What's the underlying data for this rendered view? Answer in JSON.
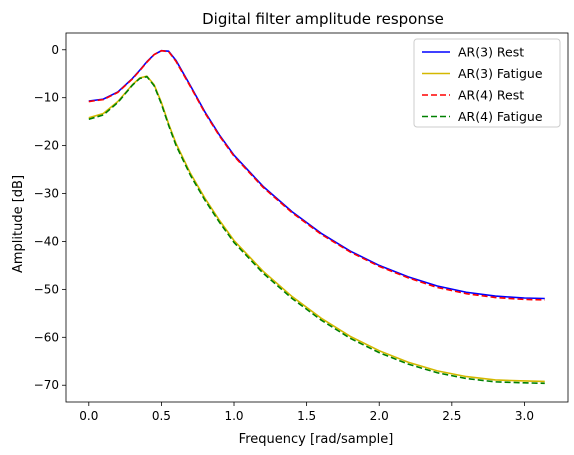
{
  "chart_data": {
    "type": "line",
    "title": "Digital filter amplitude response",
    "xlabel": "Frequency [rad/sample]",
    "ylabel": "Amplitude [dB]",
    "xlim": [
      -0.157,
      3.3
    ],
    "ylim": [
      -73.5,
      3.5
    ],
    "xticks": [
      0.0,
      0.5,
      1.0,
      1.5,
      2.0,
      2.5,
      3.0
    ],
    "xtick_labels": [
      "0.0",
      "0.5",
      "1.0",
      "1.5",
      "2.0",
      "2.5",
      "3.0"
    ],
    "yticks": [
      0,
      -10,
      -20,
      -30,
      -40,
      -50,
      -60,
      -70
    ],
    "ytick_labels": [
      "0",
      "−10",
      "−20",
      "−30",
      "−40",
      "−50",
      "−60",
      "−70"
    ],
    "grid": false,
    "legend_position": "top-right",
    "x": [
      0.0,
      0.1,
      0.2,
      0.3,
      0.35,
      0.4,
      0.45,
      0.5,
      0.55,
      0.6,
      0.7,
      0.8,
      0.9,
      1.0,
      1.2,
      1.4,
      1.6,
      1.8,
      2.0,
      2.2,
      2.4,
      2.6,
      2.8,
      3.0,
      3.14
    ],
    "series": [
      {
        "name": "AR(3) Rest",
        "color": "#0000ff",
        "style": "solid",
        "values": [
          -10.7,
          -10.3,
          -8.8,
          -6.0,
          -4.3,
          -2.5,
          -1.0,
          -0.2,
          -0.3,
          -2.2,
          -7.5,
          -13.0,
          -17.8,
          -22.0,
          -28.5,
          -33.8,
          -38.3,
          -42.0,
          -45.0,
          -47.4,
          -49.3,
          -50.6,
          -51.4,
          -51.8,
          -51.9
        ]
      },
      {
        "name": "AR(3) Fatigue",
        "color": "#d4b800",
        "style": "solid",
        "values": [
          -14.2,
          -13.3,
          -10.8,
          -7.3,
          -5.9,
          -5.5,
          -7.3,
          -11.0,
          -15.5,
          -19.5,
          -25.8,
          -31.0,
          -35.6,
          -39.8,
          -46.2,
          -51.5,
          -56.0,
          -59.8,
          -62.8,
          -65.2,
          -67.0,
          -68.2,
          -68.9,
          -69.1,
          -69.2
        ]
      },
      {
        "name": "AR(4) Rest",
        "color": "#ff0000",
        "style": "dashed",
        "values": [
          -10.8,
          -10.4,
          -8.9,
          -6.1,
          -4.4,
          -2.6,
          -1.0,
          -0.2,
          -0.4,
          -2.4,
          -7.7,
          -13.2,
          -18.0,
          -22.2,
          -28.7,
          -34.0,
          -38.5,
          -42.2,
          -45.2,
          -47.6,
          -49.6,
          -50.9,
          -51.7,
          -52.1,
          -52.2
        ]
      },
      {
        "name": "AR(4) Fatigue",
        "color": "#008000",
        "style": "dashed",
        "values": [
          -14.5,
          -13.6,
          -11.0,
          -7.4,
          -6.0,
          -5.6,
          -7.5,
          -11.3,
          -15.8,
          -19.9,
          -26.2,
          -31.4,
          -36.0,
          -40.2,
          -46.6,
          -51.9,
          -56.4,
          -60.2,
          -63.2,
          -65.6,
          -67.4,
          -68.6,
          -69.3,
          -69.5,
          -69.6
        ]
      }
    ]
  }
}
